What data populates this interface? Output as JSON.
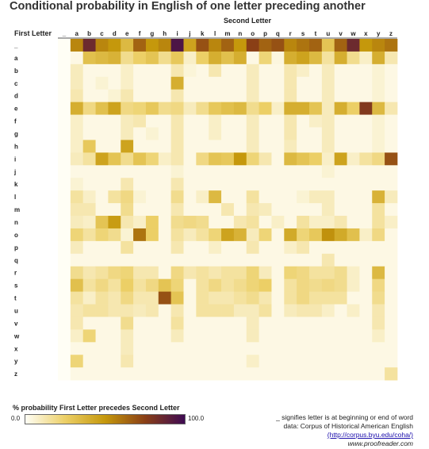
{
  "chart_data": {
    "type": "heatmap",
    "title": "Conditional probability in English of one letter preceding another",
    "xlabel": "Second Letter",
    "ylabel": "First Letter",
    "columns": [
      "_",
      "a",
      "b",
      "c",
      "d",
      "e",
      "f",
      "g",
      "h",
      "i",
      "j",
      "k",
      "l",
      "m",
      "n",
      "o",
      "p",
      "q",
      "r",
      "s",
      "t",
      "u",
      "v",
      "w",
      "x",
      "y",
      "z"
    ],
    "rows": [
      "_",
      "a",
      "b",
      "c",
      "d",
      "e",
      "f",
      "g",
      "h",
      "i",
      "j",
      "k",
      "l",
      "m",
      "n",
      "o",
      "p",
      "q",
      "r",
      "s",
      "t",
      "u",
      "v",
      "w",
      "x",
      "y",
      "z"
    ],
    "value_range": [
      0,
      100
    ],
    "values": [
      [
        0,
        55,
        85,
        55,
        50,
        35,
        65,
        50,
        55,
        95,
        45,
        70,
        55,
        65,
        50,
        75,
        65,
        70,
        55,
        60,
        65,
        30,
        65,
        85,
        50,
        55,
        60
      ],
      [
        0,
        3,
        32,
        35,
        38,
        18,
        25,
        30,
        18,
        28,
        8,
        25,
        40,
        32,
        40,
        3,
        22,
        4,
        40,
        45,
        35,
        15,
        40,
        18,
        8,
        40,
        12
      ],
      [
        0,
        10,
        3,
        3,
        3,
        8,
        3,
        3,
        3,
        12,
        5,
        3,
        12,
        3,
        3,
        10,
        3,
        3,
        12,
        8,
        3,
        10,
        3,
        3,
        3,
        6,
        3
      ],
      [
        0,
        10,
        3,
        6,
        3,
        8,
        3,
        3,
        3,
        40,
        3,
        3,
        3,
        3,
        3,
        10,
        3,
        3,
        12,
        3,
        3,
        10,
        3,
        3,
        3,
        6,
        3
      ],
      [
        0,
        12,
        3,
        3,
        6,
        12,
        3,
        3,
        3,
        12,
        3,
        3,
        3,
        3,
        3,
        10,
        3,
        3,
        12,
        3,
        3,
        10,
        3,
        3,
        3,
        6,
        3
      ],
      [
        0,
        40,
        20,
        32,
        45,
        20,
        22,
        28,
        18,
        20,
        10,
        18,
        28,
        32,
        35,
        18,
        25,
        8,
        40,
        40,
        30,
        10,
        40,
        25,
        78,
        35,
        12
      ],
      [
        0,
        8,
        3,
        3,
        3,
        10,
        12,
        3,
        3,
        12,
        3,
        3,
        8,
        3,
        3,
        10,
        3,
        3,
        12,
        3,
        8,
        10,
        3,
        3,
        3,
        6,
        3
      ],
      [
        0,
        8,
        3,
        3,
        3,
        10,
        3,
        6,
        3,
        12,
        3,
        3,
        8,
        3,
        3,
        10,
        3,
        3,
        12,
        3,
        3,
        10,
        3,
        3,
        3,
        6,
        3
      ],
      [
        0,
        8,
        28,
        3,
        3,
        45,
        3,
        3,
        3,
        12,
        3,
        3,
        3,
        3,
        3,
        10,
        3,
        3,
        10,
        3,
        3,
        10,
        3,
        3,
        3,
        6,
        3
      ],
      [
        0,
        10,
        15,
        45,
        30,
        18,
        30,
        22,
        8,
        12,
        3,
        20,
        30,
        28,
        50,
        22,
        12,
        3,
        35,
        30,
        25,
        8,
        45,
        8,
        15,
        20,
        70
      ],
      [
        0,
        3,
        3,
        3,
        3,
        3,
        3,
        3,
        3,
        6,
        3,
        3,
        3,
        3,
        3,
        3,
        3,
        3,
        3,
        3,
        3,
        6,
        3,
        3,
        3,
        3,
        3
      ],
      [
        0,
        6,
        3,
        3,
        3,
        12,
        3,
        3,
        3,
        12,
        3,
        3,
        3,
        3,
        3,
        3,
        3,
        3,
        3,
        3,
        3,
        3,
        3,
        3,
        3,
        3,
        3
      ],
      [
        0,
        15,
        8,
        3,
        15,
        20,
        6,
        3,
        3,
        18,
        3,
        8,
        35,
        3,
        3,
        15,
        3,
        3,
        3,
        6,
        10,
        10,
        3,
        3,
        3,
        38,
        10
      ],
      [
        0,
        12,
        12,
        3,
        3,
        18,
        3,
        3,
        3,
        12,
        3,
        3,
        3,
        12,
        3,
        12,
        10,
        3,
        3,
        3,
        3,
        10,
        3,
        3,
        3,
        15,
        3
      ],
      [
        0,
        10,
        8,
        30,
        48,
        12,
        8,
        25,
        3,
        18,
        20,
        18,
        3,
        3,
        12,
        15,
        3,
        8,
        3,
        15,
        8,
        8,
        12,
        3,
        3,
        15,
        8
      ],
      [
        0,
        22,
        15,
        22,
        18,
        6,
        60,
        25,
        3,
        15,
        10,
        15,
        22,
        45,
        38,
        10,
        22,
        3,
        42,
        22,
        28,
        52,
        42,
        32,
        8,
        20,
        3
      ],
      [
        0,
        10,
        3,
        3,
        3,
        15,
        3,
        3,
        3,
        12,
        3,
        3,
        8,
        3,
        3,
        12,
        3,
        3,
        8,
        12,
        3,
        3,
        3,
        3,
        3,
        3,
        3
      ],
      [
        0,
        3,
        3,
        3,
        3,
        3,
        3,
        3,
        3,
        3,
        3,
        3,
        3,
        3,
        3,
        3,
        3,
        3,
        3,
        3,
        3,
        12,
        3,
        3,
        3,
        3,
        3
      ],
      [
        0,
        18,
        12,
        15,
        20,
        22,
        12,
        12,
        3,
        20,
        12,
        15,
        12,
        15,
        15,
        22,
        10,
        3,
        22,
        20,
        15,
        15,
        18,
        8,
        3,
        35,
        3
      ],
      [
        0,
        32,
        15,
        20,
        15,
        25,
        15,
        20,
        30,
        22,
        3,
        15,
        20,
        15,
        18,
        22,
        25,
        3,
        15,
        20,
        18,
        20,
        18,
        8,
        3,
        20,
        3
      ],
      [
        0,
        15,
        8,
        15,
        12,
        20,
        12,
        12,
        70,
        30,
        3,
        15,
        12,
        12,
        15,
        18,
        12,
        3,
        15,
        20,
        15,
        15,
        15,
        3,
        3,
        18,
        3
      ],
      [
        0,
        12,
        15,
        15,
        12,
        12,
        10,
        12,
        3,
        12,
        3,
        15,
        15,
        15,
        10,
        10,
        15,
        3,
        10,
        12,
        12,
        8,
        3,
        8,
        3,
        12,
        3
      ],
      [
        0,
        12,
        3,
        3,
        3,
        18,
        3,
        3,
        3,
        15,
        3,
        3,
        3,
        3,
        3,
        10,
        3,
        3,
        3,
        3,
        3,
        3,
        3,
        3,
        3,
        12,
        3
      ],
      [
        0,
        8,
        22,
        3,
        3,
        10,
        3,
        3,
        3,
        10,
        3,
        3,
        3,
        3,
        3,
        10,
        3,
        3,
        3,
        3,
        3,
        3,
        3,
        3,
        3,
        8,
        3
      ],
      [
        0,
        3,
        3,
        3,
        3,
        10,
        3,
        3,
        3,
        3,
        3,
        3,
        3,
        3,
        3,
        3,
        3,
        3,
        3,
        3,
        3,
        3,
        3,
        3,
        3,
        3,
        3
      ],
      [
        0,
        22,
        3,
        3,
        3,
        12,
        3,
        3,
        3,
        3,
        3,
        3,
        3,
        3,
        3,
        8,
        3,
        3,
        3,
        3,
        3,
        3,
        3,
        3,
        3,
        3,
        3
      ],
      [
        0,
        3,
        3,
        3,
        3,
        3,
        3,
        3,
        3,
        3,
        3,
        3,
        3,
        3,
        3,
        3,
        3,
        3,
        3,
        3,
        3,
        3,
        3,
        3,
        3,
        3,
        15
      ]
    ],
    "color_scale": [
      "#fffef5",
      "#eccf66",
      "#c5980c",
      "#8a3f16",
      "#3e0a52"
    ],
    "legend": {
      "title": "% probability First Letter precedes Second Letter",
      "min_label": "0.0",
      "max_label": "100.0"
    }
  },
  "notes": {
    "underscore": "_ signifies letter is at  beginning or end of word",
    "source": "data: Corpus of Historical American English",
    "source_link": "(http://corpus.byu.edu/coha/)",
    "site": "www.proofreader.com"
  }
}
